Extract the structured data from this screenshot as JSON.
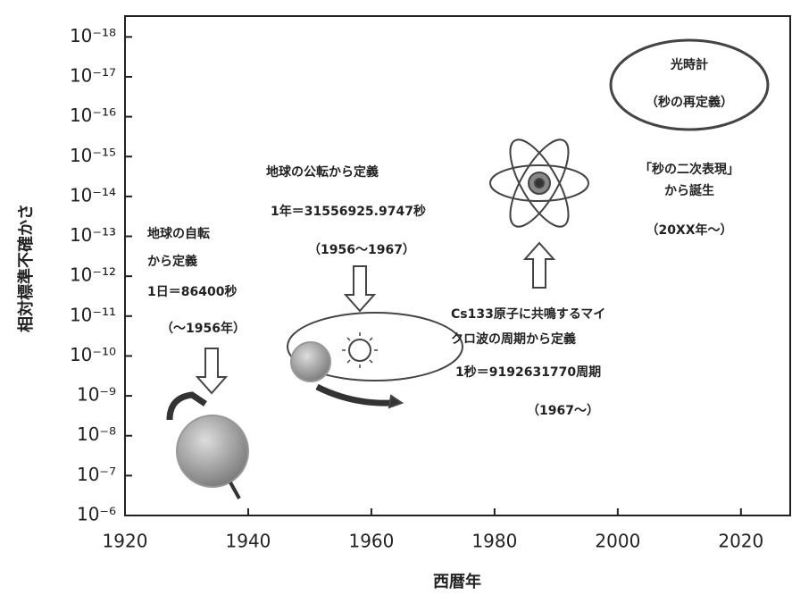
{
  "chart_data": {
    "type": "timeline",
    "x_label": "西暦年",
    "y_label": "相対標準不確かさ",
    "log_y": true,
    "xlim": [
      1920,
      2028
    ],
    "xticks": [
      1920,
      1940,
      1960,
      1980,
      2000,
      2020
    ],
    "ylim": [
      1e-06,
      3e-19
    ],
    "yticks": [
      {
        "value": 1e-18,
        "label": "10⁻¹⁸"
      },
      {
        "value": 1e-17,
        "label": "10⁻¹⁷"
      },
      {
        "value": 1e-16,
        "label": "10⁻¹⁶"
      },
      {
        "value": 1e-15,
        "label": "10⁻¹⁵"
      },
      {
        "value": 1e-14,
        "label": "10⁻¹⁴"
      },
      {
        "value": 1e-13,
        "label": "10⁻¹³"
      },
      {
        "value": 1e-12,
        "label": "10⁻¹²"
      },
      {
        "value": 1e-11,
        "label": "10⁻¹¹"
      },
      {
        "value": 1e-10,
        "label": "10⁻¹⁰"
      },
      {
        "value": 1e-09,
        "label": "10⁻⁹"
      },
      {
        "value": 1e-08,
        "label": "10⁻⁸"
      },
      {
        "value": 1e-07,
        "label": "10⁻⁷"
      },
      {
        "value": 1e-06,
        "label": "10⁻⁶"
      }
    ],
    "annotations": [
      {
        "lines": [
          "光時計",
          "（秒の再定義）"
        ]
      },
      {
        "lines": [
          "「秒の二次表現」",
          "から誕生",
          "（20XX年～）"
        ]
      },
      {
        "lines": [
          "地球の公転から定義",
          "1年＝31556925.9747秒",
          "（1956～1967）"
        ]
      },
      {
        "lines": [
          "地球の自転",
          "から定義",
          "1日＝86400秒",
          "（～1956年）"
        ]
      },
      {
        "lines": [
          "Cs133原子に共鳴するマイ",
          "クロ波の周期から定義",
          "1秒＝9192631770周期",
          "（1967～）"
        ]
      }
    ]
  }
}
